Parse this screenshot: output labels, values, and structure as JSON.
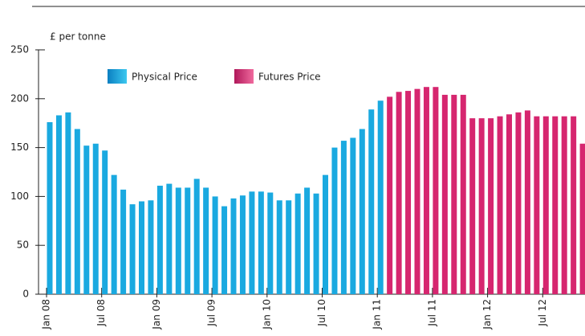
{
  "chart_data": {
    "type": "bar",
    "y_label": "£ per tonne",
    "categories": [
      "Jan 08",
      null,
      null,
      null,
      null,
      null,
      "Jul 08",
      null,
      null,
      null,
      null,
      null,
      "Jan 09",
      null,
      null,
      null,
      null,
      null,
      "Jul 09",
      null,
      null,
      null,
      null,
      null,
      "Jan 10",
      null,
      null,
      null,
      null,
      null,
      "Jul 10",
      null,
      null,
      null,
      null,
      null,
      "Jan 11",
      null,
      null,
      null,
      null,
      null,
      "Jul 11",
      null,
      null,
      null,
      null,
      null,
      "Jan 12",
      null,
      null,
      null,
      null,
      null,
      "Jul 12",
      null,
      null,
      null,
      null
    ],
    "series": [
      {
        "name": "Physical Price",
        "color": "#1aa9e0",
        "values": [
          176,
          183,
          186,
          169,
          152,
          154,
          147,
          122,
          107,
          92,
          95,
          96,
          111,
          113,
          109,
          109,
          118,
          109,
          100,
          90,
          98,
          101,
          105,
          105,
          104,
          96,
          96,
          103,
          109,
          103,
          122,
          150,
          157,
          160,
          169,
          189,
          198,
          null,
          null,
          null,
          null,
          null,
          null,
          null,
          null,
          null,
          null,
          null,
          null,
          null,
          null,
          null,
          null,
          null,
          null,
          null,
          null,
          null,
          null
        ]
      },
      {
        "name": "Futures Price",
        "color": "#d6266f",
        "values": [
          null,
          null,
          null,
          null,
          null,
          null,
          null,
          null,
          null,
          null,
          null,
          null,
          null,
          null,
          null,
          null,
          null,
          null,
          null,
          null,
          null,
          null,
          null,
          null,
          null,
          null,
          null,
          null,
          null,
          null,
          null,
          null,
          null,
          null,
          null,
          null,
          null,
          202,
          207,
          208,
          210,
          212,
          212,
          204,
          204,
          204,
          180,
          180,
          180,
          182,
          184,
          186,
          188,
          182,
          182,
          182,
          182,
          182,
          154
        ]
      }
    ],
    "ylim": [
      0,
      250
    ],
    "yticks": [
      0,
      50,
      100,
      150,
      200,
      250
    ]
  }
}
